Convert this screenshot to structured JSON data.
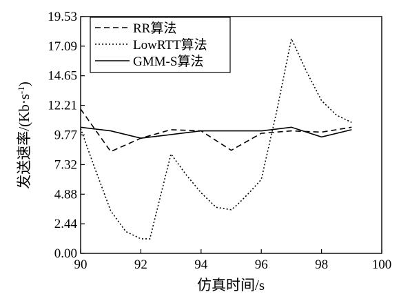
{
  "chart_data": {
    "type": "line",
    "title": "",
    "xlabel": "仿真时间/s",
    "ylabel_main": "发送速率/(Kb·s",
    "ylabel_sup": "-1",
    "ylabel_close": ")",
    "xlim": [
      90,
      100
    ],
    "ylim": [
      0,
      19.53
    ],
    "xticks": [
      90,
      92,
      94,
      96,
      98,
      100
    ],
    "xtick_labels": [
      "90",
      "92",
      "94",
      "96",
      "98",
      "100"
    ],
    "yticks": [
      0,
      2.44,
      4.88,
      7.32,
      9.77,
      12.21,
      14.65,
      17.09,
      19.53
    ],
    "ytick_labels": [
      "0.00",
      "2.44",
      "4.88",
      "7.32",
      "9.77",
      "12.21",
      "14.65",
      "17.09",
      "19.53"
    ],
    "grid": false,
    "legend_position": "top-left",
    "series": [
      {
        "name": "RR算法",
        "style": "dashed",
        "color": "#000000",
        "x": [
          90,
          91,
          92,
          93,
          94,
          95,
          96,
          97,
          98,
          99
        ],
        "y": [
          11.9,
          8.4,
          9.5,
          10.2,
          10.1,
          8.5,
          9.9,
          10.1,
          10.0,
          10.4
        ]
      },
      {
        "name": "LowRTT算法",
        "style": "dotted",
        "color": "#000000",
        "x": [
          90,
          90.4,
          91,
          91.5,
          92,
          92.3,
          93,
          93.5,
          94,
          94.5,
          95,
          95.2,
          95.6,
          96,
          96.5,
          97,
          97.5,
          98,
          98.5,
          99
        ],
        "y": [
          10.3,
          7.5,
          3.5,
          1.8,
          1.2,
          1.2,
          8.2,
          6.5,
          5.0,
          3.8,
          3.6,
          4.0,
          5.0,
          6.1,
          11.6,
          17.7,
          15.0,
          12.6,
          11.4,
          10.8
        ]
      },
      {
        "name": "GMM-S算法",
        "style": "solid",
        "color": "#000000",
        "x": [
          90,
          91,
          92,
          93,
          94,
          95,
          96,
          97,
          98,
          99
        ],
        "y": [
          10.4,
          10.1,
          9.5,
          9.8,
          10.1,
          10.1,
          10.1,
          10.4,
          9.6,
          10.2
        ]
      }
    ]
  }
}
